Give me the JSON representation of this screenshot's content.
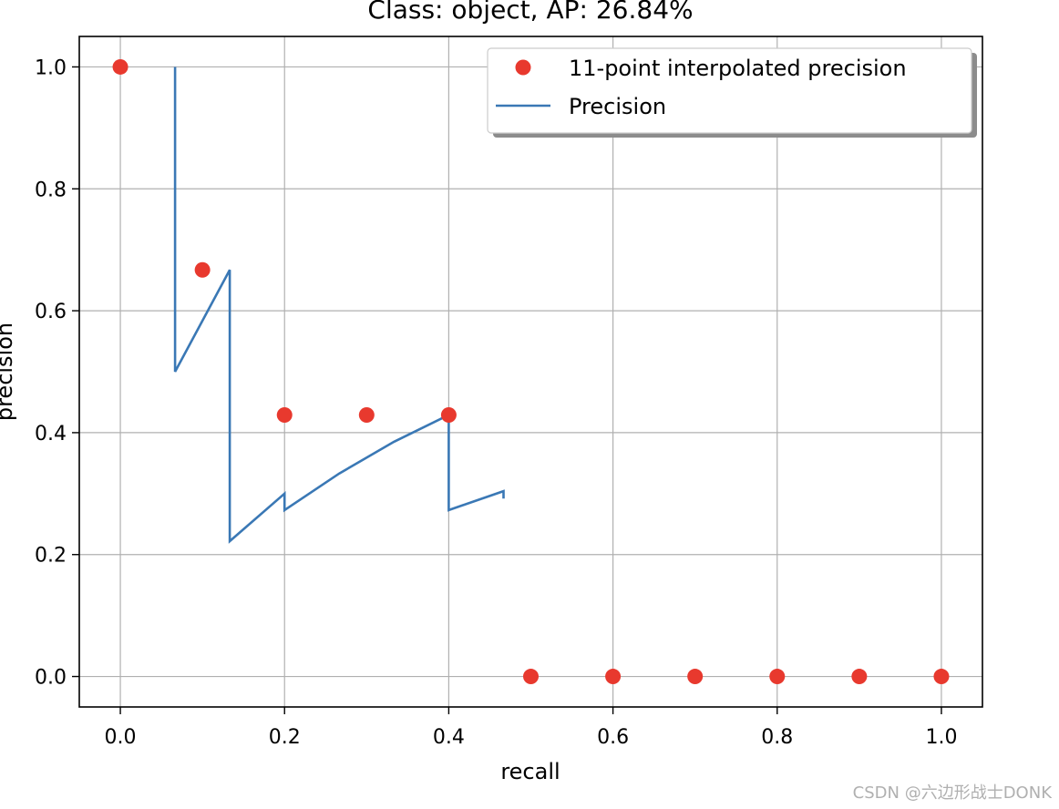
{
  "chart_data": {
    "type": "line",
    "title": "Class: object, AP: 26.84%",
    "xlabel": "recall",
    "ylabel": "precision",
    "xlim": [
      -0.05,
      1.05
    ],
    "ylim": [
      -0.05,
      1.05
    ],
    "x_ticks": [
      0.0,
      0.2,
      0.4,
      0.6,
      0.8,
      1.0
    ],
    "x_tick_labels": [
      "0.0",
      "0.2",
      "0.4",
      "0.6",
      "0.8",
      "1.0"
    ],
    "y_ticks": [
      0.0,
      0.2,
      0.4,
      0.6,
      0.8,
      1.0
    ],
    "y_tick_labels": [
      "0.0",
      "0.2",
      "0.4",
      "0.6",
      "0.8",
      "1.0"
    ],
    "grid": true,
    "legend_position": "top-right",
    "series": [
      {
        "name": "11-point interpolated precision",
        "kind": "scatter",
        "color": "#e8392e",
        "x": [
          0.0,
          0.1,
          0.2,
          0.3,
          0.4,
          0.5,
          0.6,
          0.7,
          0.8,
          0.9,
          1.0
        ],
        "y": [
          1.0,
          0.667,
          0.429,
          0.429,
          0.429,
          0.0,
          0.0,
          0.0,
          0.0,
          0.0,
          0.0
        ]
      },
      {
        "name": "Precision",
        "kind": "line",
        "color": "#3a78b5",
        "x": [
          0.0667,
          0.0667,
          0.1333,
          0.1333,
          0.2,
          0.2,
          0.2667,
          0.3333,
          0.4,
          0.4,
          0.4667,
          0.4667
        ],
        "y": [
          1.0,
          0.5,
          0.667,
          0.222,
          0.3,
          0.273,
          0.333,
          0.385,
          0.429,
          0.273,
          0.304,
          0.292
        ]
      }
    ]
  },
  "watermark": "CSDN @六边形战士DONK"
}
